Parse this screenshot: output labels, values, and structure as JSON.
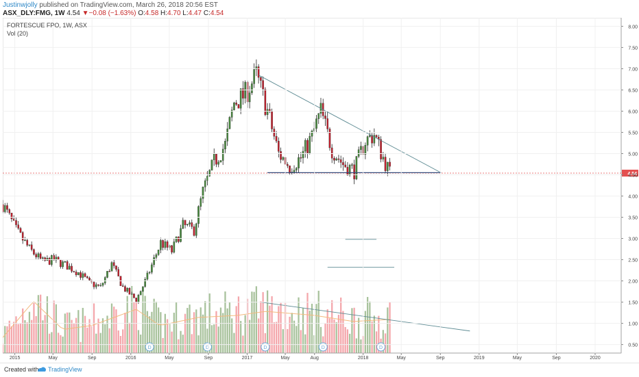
{
  "header": {
    "author": "Justinwjolly",
    "published_text": " published on TradingView.com, March 26, 2018 20:56 EST",
    "symbol": "ASX_DLY:FMG, 1W",
    "last": "4.54",
    "down_arrow": "▼",
    "change": "−0.08 (−1.63%)",
    "o_label": "O:",
    "o": "4.58",
    "h_label": "H:",
    "h": "4.70",
    "l_label": "L:",
    "l": "4.47",
    "c_label": "C:",
    "c": "4.54"
  },
  "legend": {
    "instrument": "FORTESCUE FPO, 1W, ASX",
    "volume": "Vol (20)"
  },
  "footer": {
    "created": "Created with",
    "brand": "TradingView"
  },
  "chart_data": {
    "type": "candlestick",
    "y_ticks": [
      "0.50",
      "1.00",
      "1.50",
      "2.00",
      "2.50",
      "3.00",
      "3.50",
      "4.00",
      "4.50",
      "5.00",
      "5.50",
      "6.00",
      "6.50",
      "7.00",
      "7.50",
      "8.00"
    ],
    "ylim": [
      0.3,
      8.2
    ],
    "x_ticks": [
      "2015",
      "May",
      "Sep",
      "2016",
      "May",
      "Sep",
      "2017",
      "May",
      "Aug",
      "2018",
      "May",
      "Sep",
      "2019",
      "May",
      "Sep",
      "2020"
    ],
    "last_price_label": "4.54",
    "dividend_marker": "D",
    "price_path": [
      [
        "2014-11-24",
        3.8
      ],
      [
        "2015-01-05",
        3.2
      ],
      [
        "2015-02-16",
        2.75
      ],
      [
        "2015-03-30",
        2.45
      ],
      [
        "2015-05-04",
        2.5
      ],
      [
        "2015-06-15",
        2.35
      ],
      [
        "2015-07-20",
        2.2
      ],
      [
        "2015-08-24",
        1.95
      ],
      [
        "2015-09-28",
        1.85
      ],
      [
        "2015-11-02",
        2.4
      ],
      [
        "2015-12-07",
        1.85
      ],
      [
        "2016-01-18",
        1.55
      ],
      [
        "2016-02-22",
        2.1
      ],
      [
        "2016-04-04",
        2.9
      ],
      [
        "2016-05-09",
        2.7
      ],
      [
        "2016-06-13",
        3.3
      ],
      [
        "2016-07-18",
        3.2
      ],
      [
        "2016-08-15",
        4.1
      ],
      [
        "2016-09-19",
        4.8
      ],
      [
        "2016-10-24",
        5.2
      ],
      [
        "2016-11-21",
        6.2
      ],
      [
        "2016-12-26",
        6.4
      ],
      [
        "2017-01-30",
        6.85
      ],
      [
        "2017-03-06",
        6.0
      ],
      [
        "2017-04-10",
        5.0
      ],
      [
        "2017-05-15",
        4.7
      ],
      [
        "2017-06-19",
        4.9
      ],
      [
        "2017-07-24",
        5.4
      ],
      [
        "2017-08-21",
        6.0
      ],
      [
        "2017-09-25",
        5.1
      ],
      [
        "2017-10-30",
        4.75
      ],
      [
        "2017-12-04",
        4.6
      ],
      [
        "2018-01-08",
        5.3
      ],
      [
        "2018-02-05",
        5.45
      ],
      [
        "2018-03-05",
        4.9
      ],
      [
        "2018-03-26",
        4.54
      ]
    ],
    "volume_level": [
      [
        "2014-11-24",
        0.7
      ],
      [
        "2015-03-01",
        1.6
      ],
      [
        "2015-06-01",
        0.9
      ],
      [
        "2015-09-01",
        1.0
      ],
      [
        "2016-01-18",
        1.4
      ],
      [
        "2016-04-01",
        1.0
      ],
      [
        "2016-08-01",
        1.2
      ],
      [
        "2016-12-01",
        1.25
      ],
      [
        "2017-03-01",
        1.35
      ],
      [
        "2017-08-01",
        1.25
      ],
      [
        "2017-12-01",
        1.1
      ],
      [
        "2018-03-26",
        1.15
      ]
    ],
    "dividends": [
      "2016-02-29",
      "2016-08-29",
      "2017-02-27",
      "2017-08-28",
      "2018-02-26"
    ],
    "drawings": [
      {
        "type": "trendline",
        "from": [
          "2017-02-06",
          6.85
        ],
        "to": [
          "2018-09-03",
          4.55
        ]
      },
      {
        "type": "horizontal",
        "from": [
          "2017-03-06",
          4.55
        ],
        "to": [
          "2018-09-03",
          4.55
        ]
      },
      {
        "type": "trendline",
        "from": [
          "2017-02-13",
          1.5
        ],
        "to": [
          "2018-12-03",
          0.82
        ]
      },
      {
        "type": "segment",
        "from": [
          "2017-11-06",
          2.98
        ],
        "to": [
          "2018-02-12",
          2.98
        ]
      },
      {
        "type": "segment",
        "from": [
          "2017-09-11",
          2.32
        ],
        "to": [
          "2018-04-09",
          2.32
        ]
      }
    ],
    "colors": {
      "up_candle": "#48883e",
      "down_candle": "#c11f2c",
      "up_volume": "#a8c29c",
      "down_volume": "#f4a6ab",
      "volume_ma": "#f3b97d",
      "drawing": "#5c8a92",
      "price_line": "#e45050",
      "dividend": "#6aa6d6"
    }
  }
}
